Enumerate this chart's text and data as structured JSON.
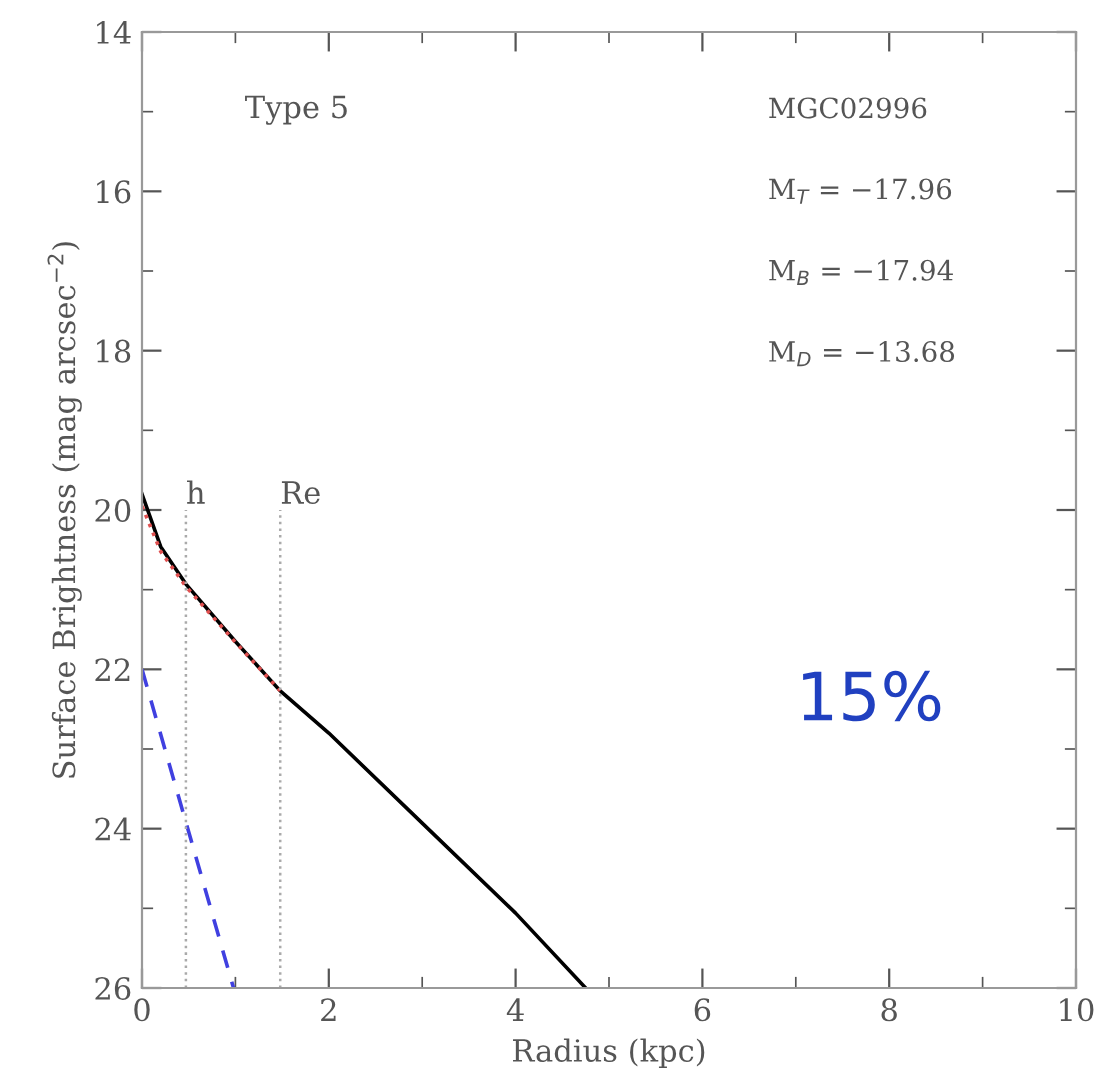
{
  "chart_data": {
    "type": "line",
    "xlabel": "Radius (kpc)",
    "ylabel": "Surface Brightness (mag arcsec$^{−2}$)",
    "xlim": [
      0,
      10
    ],
    "xticks": [
      0,
      2,
      4,
      6,
      8,
      10
    ],
    "ylim": [
      26,
      14
    ],
    "yticks": [
      14,
      16,
      18,
      20,
      22,
      24,
      26
    ],
    "grid": false,
    "series": [
      {
        "color": "#000000",
        "line_style": "solid",
        "x": [
          0,
          0.2,
          0.47,
          1.0,
          1.48,
          2,
          3,
          4,
          4.75
        ],
        "values": [
          19.8,
          20.46,
          20.93,
          21.65,
          22.27,
          22.8,
          23.93,
          25.06,
          26
        ]
      },
      {
        "color": "#e05050",
        "line_style": "dotted",
        "x": [
          0,
          0.2,
          0.47,
          1.0,
          1.48
        ],
        "values": [
          19.95,
          20.52,
          20.96,
          21.66,
          22.27
        ]
      },
      {
        "color": "#4040e0",
        "line_style": "dashed",
        "x": [
          0,
          0.98
        ],
        "values": [
          22,
          26
        ]
      }
    ],
    "ref_lines": [
      {
        "axis": "x",
        "value": 0.47,
        "label": "h",
        "color": "#aaaaaa",
        "line_style": "dotted"
      },
      {
        "axis": "x",
        "value": 1.48,
        "label": "Re",
        "color": "#aaaaaa",
        "line_style": "dotted"
      }
    ],
    "annotations": [
      "Type 5",
      "MGC02996",
      "M$_{T}$ = −17.96",
      "M$_{B}$ = −17.94",
      "M$_{D}$ = −13.68",
      "15%"
    ]
  }
}
